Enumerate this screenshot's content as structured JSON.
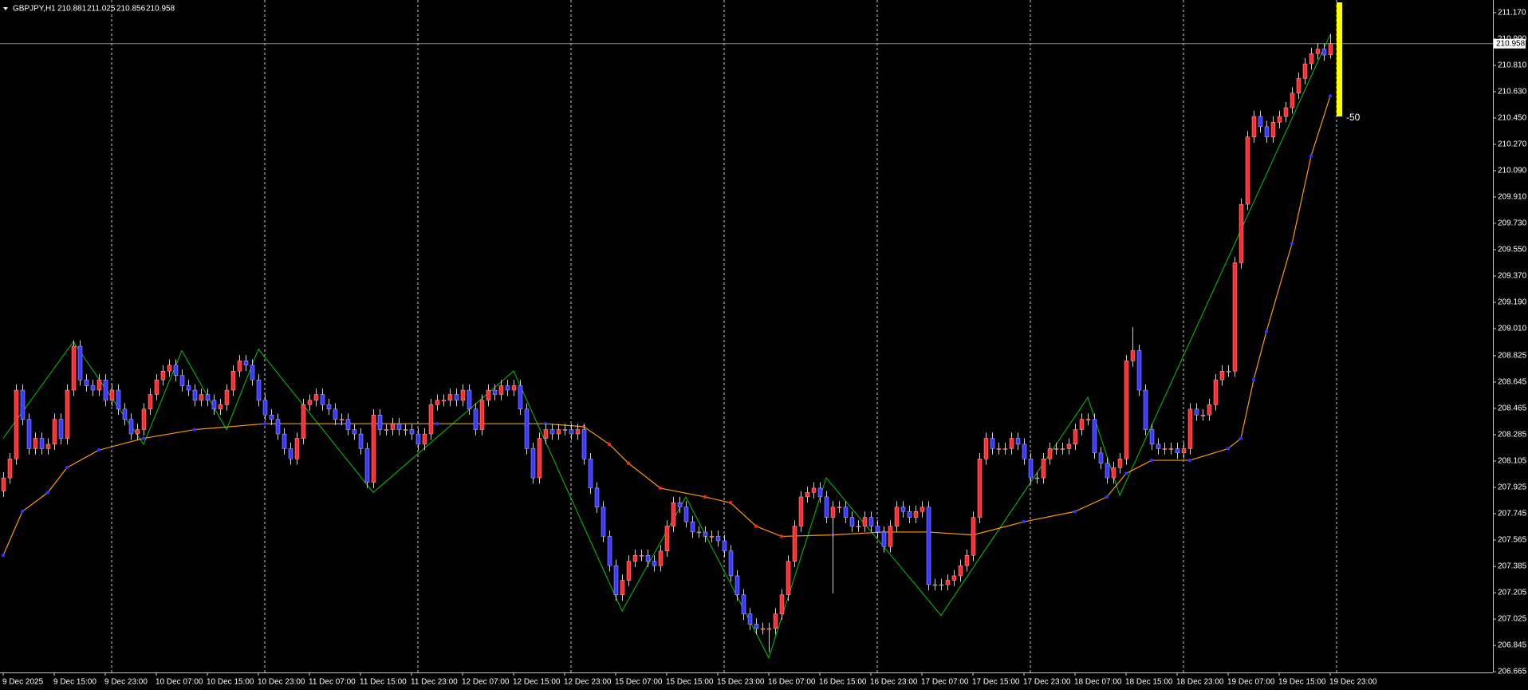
{
  "chart_data": {
    "type": "candlestick",
    "title": "GBPJPY,H1",
    "categories": [
      "9 Dec 2025",
      null,
      null,
      null,
      null,
      null,
      null,
      null,
      "9 Dec 15:00",
      null,
      null,
      null,
      null,
      null,
      null,
      null,
      "9 Dec 23:00",
      null,
      null,
      null,
      null,
      null,
      null,
      null,
      "10 Dec 07:00",
      null,
      null,
      null,
      null,
      null,
      null,
      null,
      "10 Dec 15:00",
      null,
      null,
      null,
      null,
      null,
      null,
      null,
      "10 Dec 23:00",
      null,
      null,
      null,
      null,
      null,
      null,
      null,
      "11 Dec 07:00",
      null,
      null,
      null,
      null,
      null,
      null,
      null,
      "11 Dec 15:00",
      null,
      null,
      null,
      null,
      null,
      null,
      null,
      "11 Dec 23:00",
      null,
      null,
      null,
      null,
      null,
      null,
      null,
      "12 Dec 07:00",
      null,
      null,
      null,
      null,
      null,
      null,
      null,
      "12 Dec 15:00",
      null,
      null,
      null,
      null,
      null,
      null,
      null,
      "12 Dec 23:00",
      null,
      null,
      null,
      null,
      null,
      null,
      null,
      "15 Dec 07:00",
      null,
      null,
      null,
      null,
      null,
      null,
      null,
      "15 Dec 15:00",
      null,
      null,
      null,
      null,
      null,
      null,
      null,
      "15 Dec 23:00",
      null,
      null,
      null,
      null,
      null,
      null,
      null,
      "16 Dec 07:00",
      null,
      null,
      null,
      null,
      null,
      null,
      null,
      "16 Dec 15:00",
      null,
      null,
      null,
      null,
      null,
      null,
      null,
      "16 Dec 23:00",
      null,
      null,
      null,
      null,
      null,
      null,
      null,
      "17 Dec 07:00",
      null,
      null,
      null,
      null,
      null,
      null,
      null,
      "17 Dec 15:00",
      null,
      null,
      null,
      null,
      null,
      null,
      null,
      "17 Dec 23:00",
      null,
      null,
      null,
      null,
      null,
      null,
      null,
      "18 Dec 07:00",
      null,
      null,
      null,
      null,
      null,
      null,
      null,
      "18 Dec 15:00",
      null,
      null,
      null,
      null,
      null,
      null,
      null,
      "18 Dec 23:00",
      null,
      null,
      null,
      null,
      null,
      null,
      null,
      "19 Dec 07:00",
      null,
      null,
      null,
      null,
      null,
      null,
      null,
      "19 Dec 15:00",
      null,
      null,
      null,
      null,
      null,
      null,
      null,
      "19 Dec 23:00"
    ],
    "open": [
      207.9,
      207.99,
      208.12,
      208.59,
      208.39,
      208.19,
      208.26,
      208.19,
      208.22,
      208.39,
      208.26,
      208.59,
      208.89,
      208.66,
      208.62,
      208.59,
      208.66,
      208.52,
      208.59,
      208.46,
      208.39,
      208.29,
      208.32,
      208.46,
      208.56,
      208.66,
      208.72,
      208.76,
      208.69,
      208.62,
      208.59,
      208.52,
      208.56,
      208.52,
      208.46,
      208.49,
      208.59,
      208.72,
      208.79,
      208.76,
      208.66,
      208.52,
      208.42,
      208.39,
      208.29,
      208.19,
      208.12,
      208.26,
      208.49,
      208.52,
      208.56,
      208.49,
      208.46,
      208.39,
      208.39,
      208.32,
      208.29,
      208.19,
      207.96,
      208.42,
      208.32,
      208.32,
      208.36,
      208.32,
      208.32,
      208.29,
      208.22,
      208.29,
      208.49,
      208.52,
      208.52,
      208.56,
      208.52,
      208.59,
      208.46,
      208.32,
      208.52,
      208.59,
      208.56,
      208.62,
      208.59,
      208.62,
      208.46,
      208.19,
      207.99,
      208.26,
      208.32,
      208.29,
      208.32,
      208.32,
      208.29,
      208.32,
      208.12,
      207.92,
      207.79,
      207.59,
      207.39,
      207.19,
      207.29,
      207.42,
      207.46,
      207.46,
      207.42,
      207.39,
      207.49,
      207.66,
      207.82,
      207.79,
      207.69,
      207.62,
      207.62,
      207.59,
      207.59,
      207.56,
      207.49,
      207.32,
      207.19,
      207.06,
      206.99,
      206.96,
      206.96,
      206.96,
      207.06,
      207.19,
      207.42,
      207.66,
      207.86,
      207.89,
      207.92,
      207.86,
      207.72,
      207.79,
      207.79,
      207.72,
      207.66,
      207.66,
      207.72,
      207.66,
      207.62,
      207.52,
      207.66,
      207.79,
      207.76,
      207.72,
      207.76,
      207.79,
      207.26,
      207.26,
      207.26,
      207.29,
      207.32,
      207.39,
      207.46,
      207.72,
      208.12,
      208.26,
      208.19,
      208.19,
      208.19,
      208.26,
      208.22,
      208.12,
      207.99,
      207.99,
      208.12,
      208.19,
      208.19,
      208.19,
      208.22,
      208.32,
      208.39,
      208.39,
      208.16,
      208.09,
      207.99,
      208.06,
      208.12,
      208.79,
      208.86,
      208.59,
      208.32,
      208.22,
      208.19,
      208.19,
      208.19,
      208.16,
      208.19,
      208.46,
      208.42,
      208.42,
      208.49,
      208.66,
      208.72,
      208.72,
      209.46,
      209.86,
      210.32,
      210.46,
      210.39,
      210.32,
      210.42,
      210.46,
      210.52,
      210.62,
      210.72,
      210.82,
      210.89,
      210.92,
      210.881
    ],
    "high": [
      208.03,
      208.16,
      208.63,
      208.63,
      208.43,
      208.3,
      208.3,
      208.26,
      208.43,
      208.43,
      208.63,
      208.93,
      208.93,
      208.7,
      208.66,
      208.7,
      208.7,
      208.63,
      208.63,
      208.5,
      208.43,
      208.36,
      208.5,
      208.6,
      208.7,
      208.76,
      208.8,
      208.8,
      208.73,
      208.66,
      208.63,
      208.6,
      208.6,
      208.56,
      208.53,
      208.63,
      208.76,
      208.83,
      208.83,
      208.8,
      208.7,
      208.56,
      208.46,
      208.43,
      208.33,
      208.23,
      208.3,
      208.53,
      208.56,
      208.6,
      208.6,
      208.53,
      208.5,
      208.43,
      208.43,
      208.36,
      208.33,
      208.23,
      208.46,
      208.46,
      208.36,
      208.4,
      208.4,
      208.36,
      208.36,
      208.33,
      208.33,
      208.53,
      208.56,
      208.56,
      208.6,
      208.6,
      208.63,
      208.63,
      208.5,
      208.56,
      208.63,
      208.63,
      208.66,
      208.66,
      208.66,
      208.66,
      208.5,
      208.23,
      208.3,
      208.36,
      208.36,
      208.36,
      208.36,
      208.36,
      208.36,
      208.36,
      208.16,
      207.96,
      207.83,
      207.63,
      207.43,
      207.33,
      207.46,
      207.5,
      207.5,
      207.5,
      207.46,
      207.53,
      207.7,
      207.86,
      207.86,
      207.83,
      207.73,
      207.66,
      207.66,
      207.63,
      207.63,
      207.6,
      207.53,
      207.36,
      207.23,
      207.1,
      207.03,
      207.0,
      207.0,
      207.1,
      207.23,
      207.46,
      207.7,
      207.9,
      207.93,
      207.96,
      207.96,
      207.9,
      207.83,
      207.83,
      207.83,
      207.76,
      207.7,
      207.76,
      207.76,
      207.7,
      207.66,
      207.7,
      207.83,
      207.83,
      207.8,
      207.8,
      207.83,
      207.83,
      207.3,
      207.3,
      207.33,
      207.36,
      207.43,
      207.5,
      207.76,
      208.16,
      208.3,
      208.3,
      208.23,
      208.23,
      208.3,
      208.3,
      208.26,
      208.16,
      208.03,
      208.16,
      208.23,
      208.23,
      208.23,
      208.26,
      208.36,
      208.43,
      208.43,
      208.43,
      208.2,
      208.13,
      208.1,
      208.16,
      208.83,
      209.02,
      208.9,
      208.63,
      208.36,
      208.26,
      208.23,
      208.23,
      208.23,
      208.23,
      208.5,
      208.5,
      208.46,
      208.53,
      208.7,
      208.76,
      208.76,
      209.5,
      209.9,
      210.36,
      210.5,
      210.5,
      210.43,
      210.46,
      210.5,
      210.56,
      210.66,
      210.76,
      210.86,
      210.93,
      210.96,
      210.96,
      211.025
    ],
    "low": [
      207.86,
      207.95,
      208.08,
      208.35,
      208.15,
      208.15,
      208.15,
      208.15,
      208.18,
      208.22,
      208.22,
      208.55,
      208.62,
      208.58,
      208.55,
      208.55,
      208.48,
      208.48,
      208.42,
      208.35,
      208.25,
      208.25,
      208.28,
      208.42,
      208.52,
      208.62,
      208.68,
      208.65,
      208.58,
      208.55,
      208.48,
      208.48,
      208.48,
      208.42,
      208.42,
      208.45,
      208.55,
      208.68,
      208.72,
      208.62,
      208.48,
      208.38,
      208.35,
      208.25,
      208.15,
      208.08,
      208.08,
      208.22,
      208.45,
      208.48,
      208.45,
      208.42,
      208.35,
      208.35,
      208.28,
      208.25,
      208.15,
      207.92,
      207.92,
      208.28,
      208.28,
      208.28,
      208.28,
      208.28,
      208.25,
      208.18,
      208.18,
      208.25,
      208.45,
      208.48,
      208.48,
      208.48,
      208.48,
      208.42,
      208.28,
      208.28,
      208.48,
      208.52,
      208.52,
      208.55,
      208.55,
      208.42,
      208.15,
      207.95,
      207.95,
      208.22,
      208.25,
      208.25,
      208.28,
      208.25,
      208.25,
      208.08,
      207.88,
      207.75,
      207.55,
      207.35,
      207.15,
      207.15,
      207.25,
      207.38,
      207.42,
      207.38,
      207.35,
      207.35,
      207.45,
      207.62,
      207.75,
      207.65,
      207.58,
      207.58,
      207.55,
      207.55,
      207.52,
      207.45,
      207.28,
      207.15,
      207.02,
      206.95,
      206.92,
      206.92,
      206.8,
      206.92,
      207.02,
      207.15,
      207.38,
      207.62,
      207.82,
      207.85,
      207.82,
      207.68,
      207.2,
      207.75,
      207.68,
      207.62,
      207.62,
      207.62,
      207.62,
      207.58,
      207.48,
      207.48,
      207.62,
      207.72,
      207.68,
      207.68,
      207.72,
      207.22,
      207.22,
      207.22,
      207.22,
      207.25,
      207.28,
      207.35,
      207.42,
      207.68,
      208.08,
      208.15,
      208.15,
      208.15,
      208.15,
      208.18,
      208.08,
      207.95,
      207.95,
      207.95,
      208.08,
      208.15,
      208.15,
      208.15,
      208.18,
      208.28,
      208.35,
      208.12,
      208.05,
      207.95,
      207.95,
      208.02,
      208.08,
      208.75,
      208.55,
      208.28,
      208.18,
      208.15,
      208.15,
      208.15,
      208.12,
      208.12,
      208.15,
      208.38,
      208.38,
      208.38,
      208.45,
      208.62,
      208.68,
      208.68,
      209.42,
      209.82,
      210.28,
      210.35,
      210.28,
      210.28,
      210.38,
      210.42,
      210.48,
      210.58,
      210.68,
      210.78,
      210.85,
      210.84,
      210.856
    ],
    "close": [
      207.99,
      208.12,
      208.59,
      208.39,
      208.19,
      208.26,
      208.19,
      208.22,
      208.39,
      208.26,
      208.59,
      208.89,
      208.66,
      208.62,
      208.59,
      208.66,
      208.52,
      208.59,
      208.46,
      208.39,
      208.29,
      208.32,
      208.46,
      208.56,
      208.66,
      208.72,
      208.76,
      208.69,
      208.62,
      208.59,
      208.52,
      208.56,
      208.52,
      208.46,
      208.49,
      208.59,
      208.72,
      208.79,
      208.76,
      208.66,
      208.52,
      208.42,
      208.39,
      208.29,
      208.19,
      208.12,
      208.26,
      208.49,
      208.52,
      208.56,
      208.49,
      208.46,
      208.39,
      208.39,
      208.32,
      208.29,
      208.19,
      207.96,
      208.42,
      208.32,
      208.32,
      208.36,
      208.32,
      208.32,
      208.29,
      208.22,
      208.29,
      208.49,
      208.52,
      208.52,
      208.56,
      208.52,
      208.59,
      208.46,
      208.32,
      208.52,
      208.59,
      208.56,
      208.62,
      208.59,
      208.62,
      208.46,
      208.19,
      207.99,
      208.26,
      208.32,
      208.29,
      208.32,
      208.32,
      208.29,
      208.32,
      208.12,
      207.92,
      207.79,
      207.59,
      207.39,
      207.19,
      207.29,
      207.42,
      207.46,
      207.46,
      207.42,
      207.39,
      207.49,
      207.66,
      207.82,
      207.79,
      207.69,
      207.62,
      207.62,
      207.59,
      207.59,
      207.56,
      207.49,
      207.32,
      207.19,
      207.06,
      206.99,
      206.96,
      206.96,
      206.96,
      207.06,
      207.19,
      207.42,
      207.66,
      207.86,
      207.89,
      207.92,
      207.86,
      207.72,
      207.79,
      207.79,
      207.72,
      207.66,
      207.66,
      207.72,
      207.66,
      207.62,
      207.52,
      207.66,
      207.79,
      207.76,
      207.72,
      207.76,
      207.79,
      207.26,
      207.26,
      207.26,
      207.29,
      207.32,
      207.39,
      207.46,
      207.72,
      208.12,
      208.26,
      208.19,
      208.19,
      208.19,
      208.26,
      208.22,
      208.12,
      207.99,
      207.99,
      208.12,
      208.19,
      208.19,
      208.19,
      208.22,
      208.32,
      208.39,
      208.39,
      208.16,
      208.09,
      207.99,
      208.06,
      208.12,
      208.79,
      208.86,
      208.59,
      208.32,
      208.22,
      208.19,
      208.19,
      208.19,
      208.16,
      208.19,
      208.46,
      208.42,
      208.42,
      208.49,
      208.66,
      208.72,
      208.72,
      209.46,
      209.86,
      210.32,
      210.46,
      210.39,
      210.32,
      210.42,
      210.46,
      210.52,
      210.62,
      210.72,
      210.82,
      210.89,
      210.92,
      210.88,
      210.958
    ],
    "bull_color": "#ff2e2e",
    "bear_color": "#3a3aff",
    "wick_color": "#d0d0d0",
    "ylim": [
      206.66,
      211.24
    ],
    "yticks": [
      206.665,
      206.845,
      207.025,
      207.205,
      207.385,
      207.565,
      207.745,
      207.925,
      208.105,
      208.285,
      208.465,
      208.645,
      208.825,
      {
        "value": 209.01,
        "label": "209.010"
      },
      {
        "value": 209.19,
        "label": "209.190"
      },
      {
        "value": 209.37,
        "label": "209.370"
      },
      {
        "value": 209.55,
        "label": "209.550"
      },
      {
        "value": 209.73,
        "label": "209.730"
      },
      {
        "value": 209.91,
        "label": "209.910"
      },
      {
        "value": 210.09,
        "label": "210.090"
      },
      {
        "value": 210.27,
        "label": "210.270"
      },
      {
        "value": 210.45,
        "label": "210.450"
      },
      {
        "value": 210.63,
        "label": "210.630"
      },
      {
        "value": 210.81,
        "label": "210.810"
      },
      {
        "value": 210.99,
        "label": "210.990"
      },
      {
        "value": 211.17,
        "label": "211.170"
      }
    ],
    "period_separators": true,
    "moving_average": {
      "color": "#ff9900",
      "rise_color": "#3030ff",
      "fall_color": "#ff2020",
      "x": [
        0,
        3,
        7,
        10,
        15,
        22,
        30,
        41,
        53,
        68,
        85,
        91,
        95,
        98,
        103,
        110,
        114,
        118,
        122,
        130,
        138,
        145,
        152,
        160,
        168,
        173,
        176,
        180,
        186,
        192,
        194,
        196,
        198,
        202,
        205,
        208
      ],
      "values": [
        207.46,
        207.76,
        207.89,
        208.06,
        208.18,
        208.26,
        208.32,
        208.36,
        208.36,
        208.36,
        208.36,
        208.34,
        208.22,
        208.09,
        207.92,
        207.86,
        207.82,
        207.66,
        207.59,
        207.6,
        207.62,
        207.62,
        207.6,
        207.69,
        207.76,
        207.86,
        208.02,
        208.11,
        208.11,
        208.19,
        208.26,
        208.66,
        208.99,
        209.59,
        210.19,
        210.6
      ]
    },
    "zigzag": {
      "color": "#00c800",
      "x": [
        0,
        11,
        22,
        28,
        35,
        40,
        58,
        80,
        97,
        107,
        120,
        129,
        147,
        170,
        175,
        208
      ],
      "values": [
        208.26,
        208.92,
        208.22,
        208.86,
        208.32,
        208.87,
        207.89,
        208.72,
        207.08,
        207.86,
        206.76,
        207.99,
        207.05,
        208.54,
        207.87,
        211.02
      ]
    },
    "annotation": "-50",
    "annotation_color": "#ffff00"
  }
}
